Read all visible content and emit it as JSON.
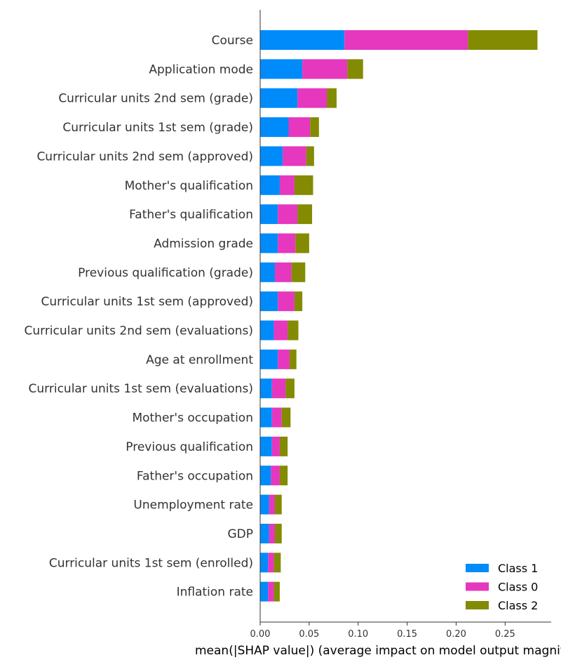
{
  "chart_data": {
    "type": "bar",
    "orientation": "horizontal",
    "stacked": true,
    "categories": [
      "Course",
      "Application mode",
      "Curricular units 2nd sem (grade)",
      "Curricular units 1st sem (grade)",
      "Curricular units 2nd sem (approved)",
      "Mother's qualification",
      "Father's qualification",
      "Admission grade",
      "Previous qualification (grade)",
      "Curricular units 1st sem (approved)",
      "Curricular units 2nd sem (evaluations)",
      "Age at enrollment",
      "Curricular units 1st sem (evaluations)",
      "Mother's occupation",
      "Previous qualification",
      "Father's occupation",
      "Unemployment rate",
      "GDP",
      "Curricular units 1st sem (enrolled)",
      "Inflation rate"
    ],
    "series": [
      {
        "name": "Class 1",
        "color": "#008bfb",
        "values": [
          0.086,
          0.043,
          0.038,
          0.029,
          0.023,
          0.02,
          0.018,
          0.018,
          0.015,
          0.018,
          0.014,
          0.018,
          0.012,
          0.012,
          0.012,
          0.011,
          0.009,
          0.009,
          0.008,
          0.008
        ]
      },
      {
        "name": "Class 0",
        "color": "#e637bf",
        "values": [
          0.126,
          0.046,
          0.03,
          0.022,
          0.024,
          0.015,
          0.02,
          0.018,
          0.017,
          0.017,
          0.014,
          0.012,
          0.014,
          0.01,
          0.008,
          0.009,
          0.006,
          0.006,
          0.006,
          0.006
        ]
      },
      {
        "name": "Class 2",
        "color": "#838b02",
        "values": [
          0.071,
          0.016,
          0.01,
          0.009,
          0.008,
          0.019,
          0.015,
          0.014,
          0.014,
          0.008,
          0.011,
          0.007,
          0.009,
          0.009,
          0.008,
          0.008,
          0.007,
          0.007,
          0.007,
          0.006
        ]
      }
    ],
    "xlabel": "mean(|SHAP value|) (average impact on model output magnitude)",
    "xlim": [
      0,
      0.297
    ],
    "xticks": [
      "0.00",
      "0.05",
      "0.10",
      "0.15",
      "0.20",
      "0.25"
    ],
    "xtick_values": [
      0,
      0.05,
      0.1,
      0.15,
      0.2,
      0.25
    ],
    "legend_position": "lower-right",
    "legend": [
      "Class 1",
      "Class 0",
      "Class 2"
    ],
    "grid": false
  }
}
